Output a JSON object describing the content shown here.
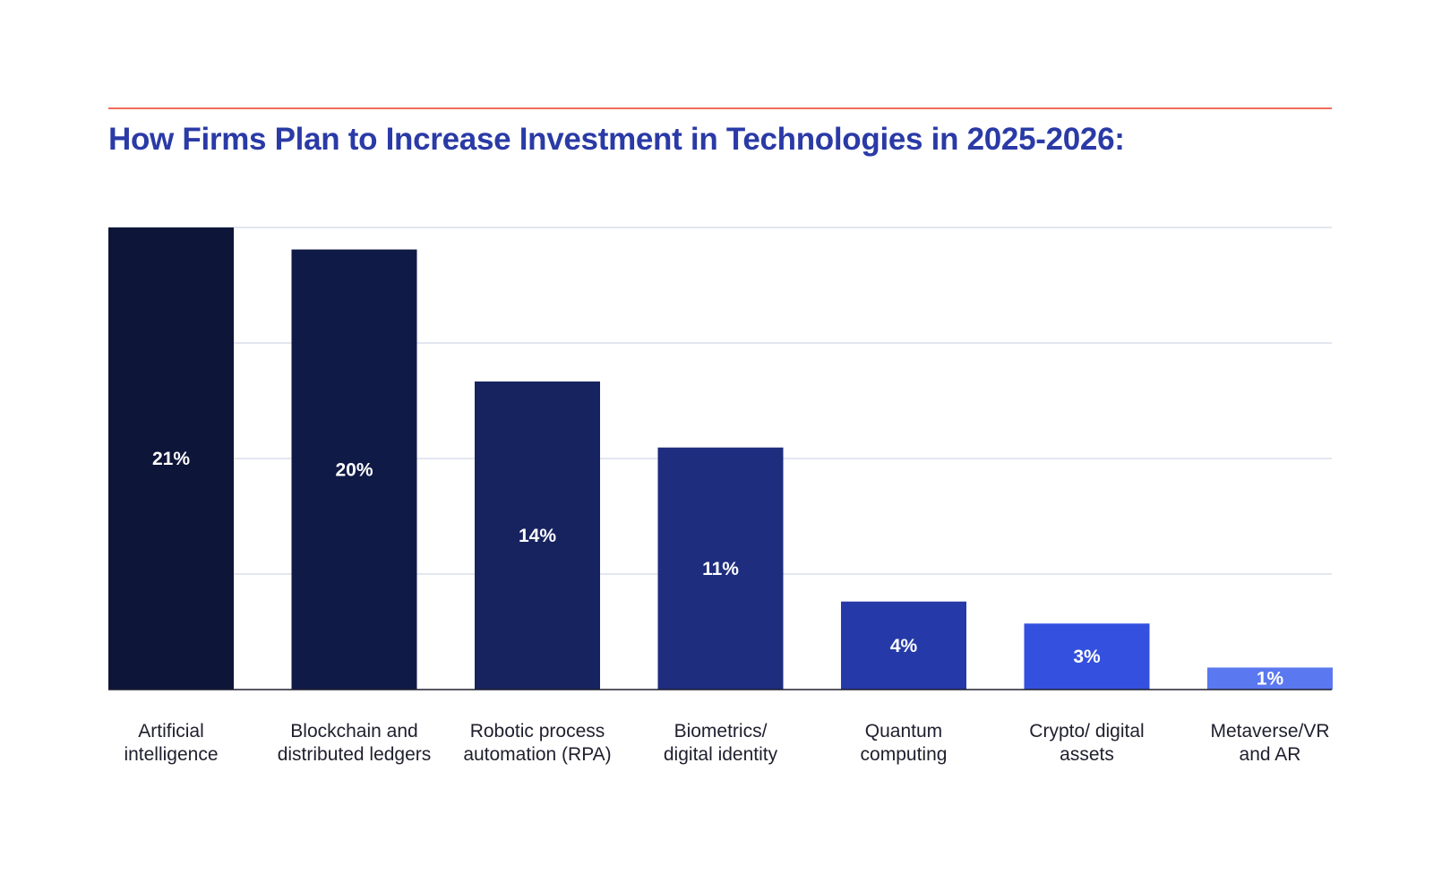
{
  "chart_data": {
    "type": "bar",
    "title": "How Firms Plan to Increase Investment in Technologies in 2025-2026:",
    "xlabel": "",
    "ylabel": "",
    "ylim": [
      0,
      21
    ],
    "grid": true,
    "categories": [
      [
        "Artificial",
        "intelligence"
      ],
      [
        "Blockchain and",
        "distributed ledgers"
      ],
      [
        "Robotic process",
        "automation (RPA)"
      ],
      [
        "Biometrics/",
        "digital identity"
      ],
      [
        "Quantum",
        "computing"
      ],
      [
        "Crypto/ digital",
        "assets"
      ],
      [
        "Metaverse/VR",
        "and AR"
      ]
    ],
    "values": [
      21,
      20,
      14,
      11,
      4,
      3,
      1
    ],
    "value_labels": [
      "21%",
      "20%",
      "14%",
      "11%",
      "4%",
      "3%",
      "1%"
    ],
    "colors": [
      "#0d1538",
      "#101a47",
      "#17235f",
      "#1e2d7e",
      "#253aa8",
      "#3450de",
      "#5a78f0"
    ]
  },
  "colors": {
    "accent_rule": "#f26b5b",
    "title": "#2a3aa6",
    "grid": "#d4d8e8",
    "baseline": "#1f1f2e"
  }
}
